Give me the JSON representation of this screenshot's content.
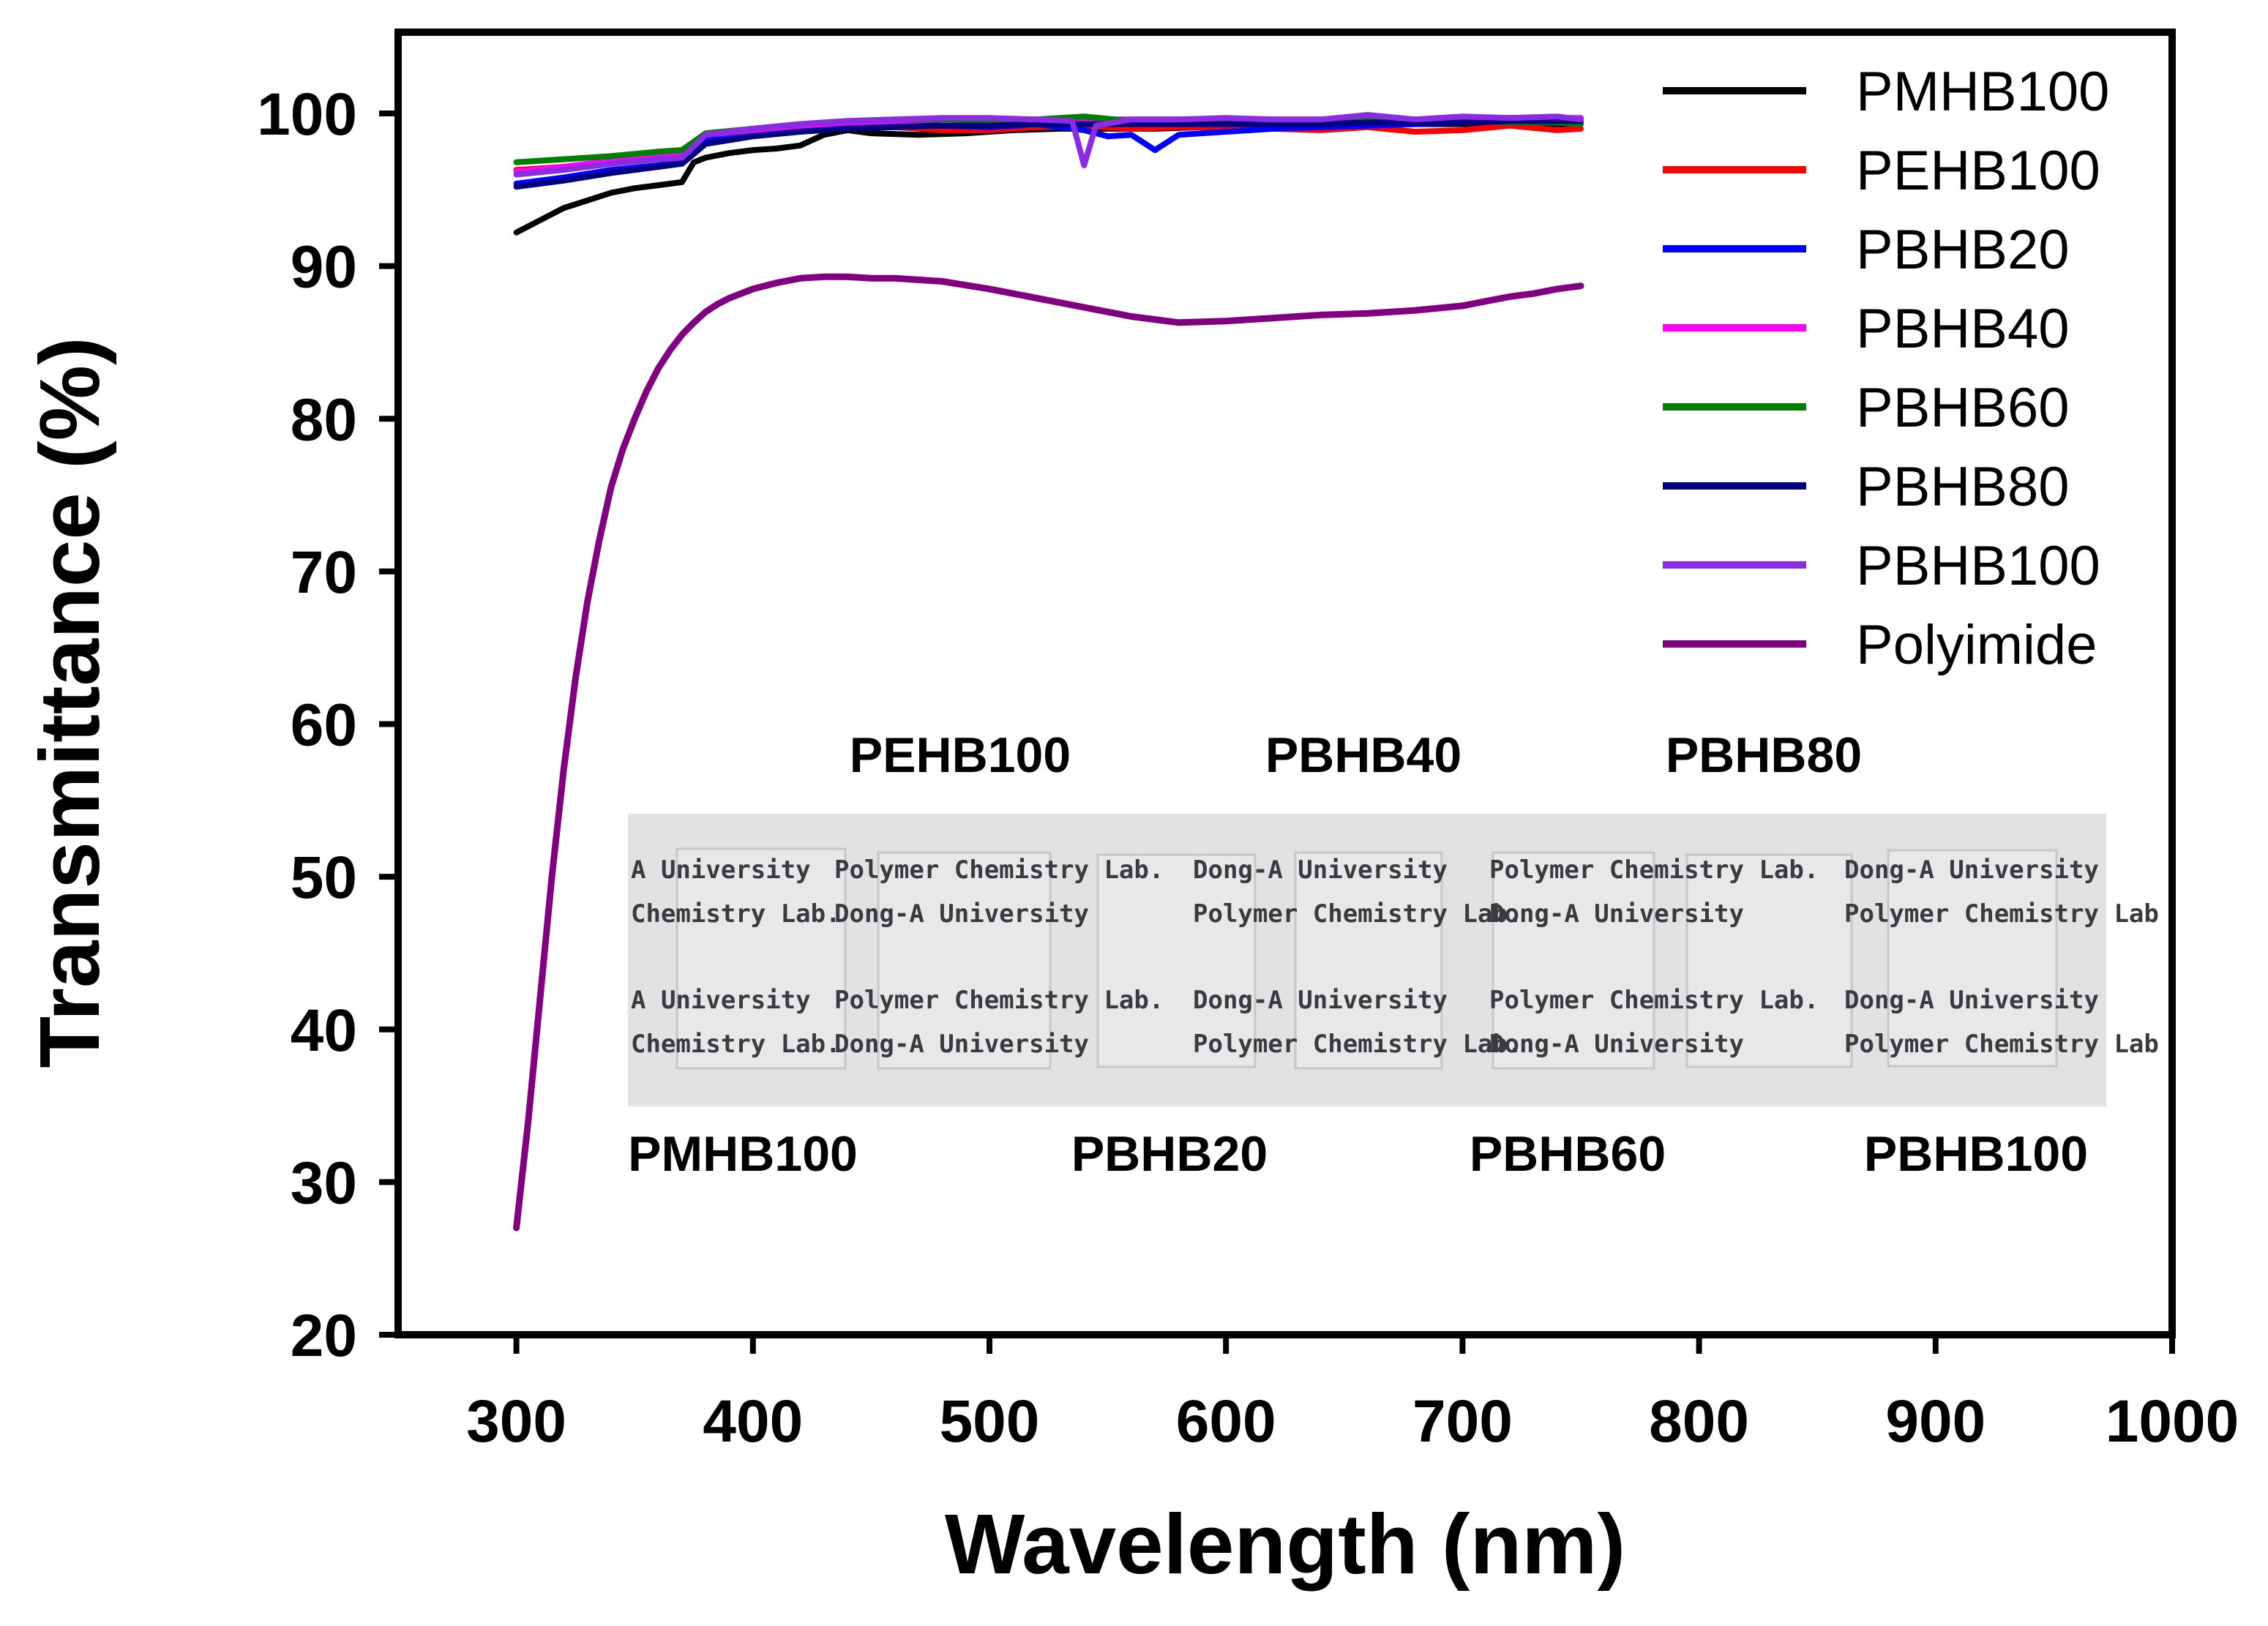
{
  "chart_data": {
    "type": "line",
    "title": "",
    "xlabel": "Wavelength (nm)",
    "ylabel": "Transmittance (%)",
    "xlim": [
      250,
      1000
    ],
    "ylim": [
      20,
      105
    ],
    "x_ticks": [
      300,
      400,
      500,
      600,
      700,
      800,
      900,
      1000
    ],
    "y_ticks": [
      20,
      30,
      40,
      50,
      60,
      70,
      80,
      90,
      100
    ],
    "grid": false,
    "legend_position": "top-right",
    "series": [
      {
        "name": "PMHB100",
        "color": "#000000",
        "x": [
          300,
          310,
          320,
          330,
          340,
          350,
          360,
          370,
          375,
          380,
          390,
          400,
          410,
          420,
          430,
          440,
          450,
          470,
          490,
          510,
          530,
          550,
          570,
          590,
          610,
          630,
          650,
          670,
          690,
          710,
          730,
          750
        ],
        "y": [
          92.2,
          93.0,
          93.8,
          94.3,
          94.8,
          95.1,
          95.3,
          95.5,
          96.8,
          97.1,
          97.4,
          97.6,
          97.7,
          97.9,
          98.6,
          98.9,
          98.7,
          98.6,
          98.7,
          98.9,
          99.0,
          99.0,
          99.0,
          99.1,
          99.1,
          99.2,
          99.2,
          99.3,
          99.3,
          99.3,
          99.3,
          99.3
        ]
      },
      {
        "name": "PEHB100",
        "color": "#ff0000",
        "x": [
          300,
          320,
          340,
          360,
          370,
          380,
          400,
          420,
          440,
          460,
          480,
          500,
          520,
          540,
          560,
          580,
          600,
          620,
          640,
          660,
          680,
          700,
          720,
          740,
          750
        ],
        "y": [
          96.3,
          96.5,
          96.8,
          97.1,
          97.2,
          98.4,
          98.7,
          99.0,
          99.2,
          99.1,
          98.9,
          98.9,
          99.1,
          99.2,
          99.0,
          99.1,
          99.1,
          99.0,
          98.9,
          99.1,
          98.8,
          98.9,
          99.2,
          98.9,
          99.0
        ]
      },
      {
        "name": "PBHB20",
        "color": "#0000ff",
        "x": [
          300,
          320,
          340,
          360,
          370,
          380,
          400,
          420,
          440,
          460,
          480,
          500,
          520,
          540,
          550,
          560,
          570,
          580,
          600,
          620,
          640,
          660,
          680,
          700,
          720,
          740,
          750
        ],
        "y": [
          95.4,
          95.8,
          96.3,
          96.6,
          96.8,
          98.2,
          98.8,
          99.1,
          99.3,
          99.4,
          99.2,
          99.1,
          99.3,
          98.9,
          98.5,
          98.6,
          97.6,
          98.6,
          98.8,
          99.0,
          99.1,
          99.2,
          99.3,
          99.4,
          99.5,
          99.6,
          99.7
        ]
      },
      {
        "name": "PBHB40",
        "color": "#ff00ff",
        "x": [
          300,
          320,
          340,
          360,
          370,
          380,
          400,
          420,
          440,
          460,
          480,
          500,
          520,
          540,
          560,
          580,
          600,
          620,
          640,
          660,
          680,
          700,
          720,
          740,
          750
        ],
        "y": [
          96.2,
          96.5,
          96.9,
          97.2,
          97.4,
          98.6,
          98.9,
          99.2,
          99.4,
          99.5,
          99.6,
          99.6,
          99.6,
          99.6,
          99.6,
          99.6,
          99.6,
          99.6,
          99.6,
          99.7,
          99.6,
          99.7,
          99.7,
          99.7,
          99.7
        ]
      },
      {
        "name": "PBHB60",
        "color": "#008000",
        "x": [
          300,
          320,
          340,
          360,
          370,
          380,
          400,
          420,
          440,
          460,
          480,
          500,
          520,
          540,
          560,
          580,
          600,
          620,
          640,
          660,
          680,
          700,
          720,
          740,
          750
        ],
        "y": [
          96.8,
          97.0,
          97.2,
          97.5,
          97.6,
          98.7,
          99.0,
          99.3,
          99.5,
          99.6,
          99.6,
          99.5,
          99.6,
          99.8,
          99.5,
          99.4,
          99.5,
          99.4,
          99.3,
          99.5,
          99.4,
          99.5,
          99.4,
          99.4,
          99.3
        ]
      },
      {
        "name": "PBHB80",
        "color": "#000080",
        "x": [
          300,
          320,
          340,
          360,
          370,
          380,
          400,
          420,
          440,
          460,
          480,
          500,
          520,
          540,
          560,
          580,
          600,
          620,
          640,
          660,
          680,
          700,
          720,
          740,
          750
        ],
        "y": [
          95.2,
          95.6,
          96.1,
          96.5,
          96.7,
          98.0,
          98.5,
          98.8,
          99.0,
          99.1,
          99.2,
          99.2,
          99.3,
          99.3,
          99.3,
          99.3,
          99.3,
          99.3,
          99.3,
          99.4,
          99.4,
          99.4,
          99.5,
          99.5,
          99.5
        ]
      },
      {
        "name": "PBHB100",
        "color": "#8b2be2",
        "x": [
          300,
          320,
          340,
          360,
          370,
          380,
          400,
          420,
          440,
          460,
          480,
          500,
          520,
          535,
          540,
          545,
          560,
          580,
          600,
          620,
          640,
          660,
          680,
          700,
          720,
          740,
          750
        ],
        "y": [
          96.0,
          96.3,
          96.7,
          97.0,
          97.1,
          98.6,
          99.0,
          99.3,
          99.5,
          99.6,
          99.7,
          99.7,
          99.6,
          99.5,
          96.6,
          99.2,
          99.6,
          99.6,
          99.7,
          99.6,
          99.6,
          99.9,
          99.6,
          99.8,
          99.7,
          99.8,
          99.6
        ]
      },
      {
        "name": "Polyimide",
        "color": "#800080",
        "x": [
          300,
          305,
          310,
          315,
          320,
          325,
          330,
          335,
          340,
          345,
          350,
          355,
          360,
          365,
          370,
          375,
          380,
          385,
          390,
          395,
          400,
          410,
          420,
          430,
          440,
          450,
          460,
          470,
          480,
          500,
          520,
          540,
          560,
          580,
          600,
          620,
          640,
          660,
          680,
          700,
          710,
          720,
          730,
          740,
          750
        ],
        "y": [
          27.0,
          34.0,
          42.0,
          50.0,
          57.0,
          63.0,
          68.0,
          72.0,
          75.5,
          78.0,
          80.0,
          81.8,
          83.3,
          84.5,
          85.5,
          86.3,
          87.0,
          87.5,
          87.9,
          88.2,
          88.5,
          88.9,
          89.2,
          89.3,
          89.3,
          89.2,
          89.2,
          89.1,
          89.0,
          88.5,
          87.9,
          87.3,
          86.7,
          86.3,
          86.4,
          86.6,
          86.8,
          86.9,
          87.1,
          87.4,
          87.7,
          88.0,
          88.2,
          88.5,
          88.7
        ]
      }
    ],
    "inset_photo": {
      "top_labels": [
        "PEHB100",
        "PBHB40",
        "PBHB80"
      ],
      "bottom_labels": [
        "PMHB100",
        "PBHB20",
        "PBHB60",
        "PBHB100"
      ],
      "background_text": [
        [
          "A University",
          "Polymer Chemistry Lab.",
          "Dong-A University",
          "Polymer Chemistry Lab.",
          "Dong-A University"
        ],
        [
          "Chemistry Lab.",
          "Dong-A University",
          "Polymer Chemistry Lab.",
          "Dong-A University",
          "Polymer Chemistry Lab"
        ]
      ]
    }
  }
}
